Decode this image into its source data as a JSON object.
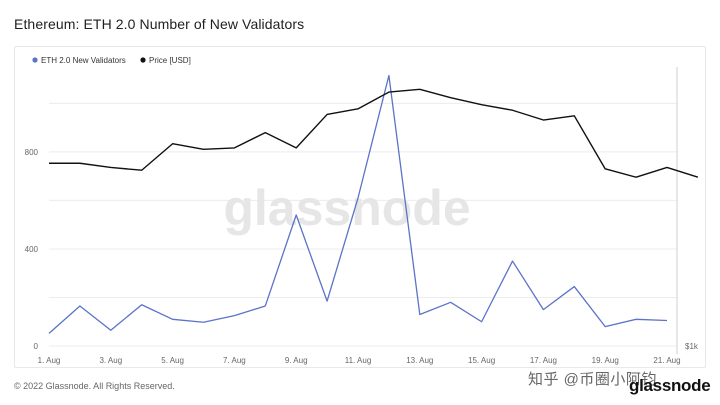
{
  "header": {
    "title": "Ethereum: ETH 2.0 Number of New Validators"
  },
  "footer": {
    "copyright": "© 2022 Glassnode. All Rights Reserved."
  },
  "branding": {
    "watermark": "glassnode",
    "logo": "glassnode",
    "cn_watermark": "知乎 @币圈小阿钧"
  },
  "chart_data": {
    "type": "line",
    "x": [
      "1. Aug",
      "2. Aug",
      "3. Aug",
      "4. Aug",
      "5. Aug",
      "6. Aug",
      "7. Aug",
      "8. Aug",
      "9. Aug",
      "10. Aug",
      "11. Aug",
      "12. Aug",
      "13. Aug",
      "14. Aug",
      "15. Aug",
      "16. Aug",
      "17. Aug",
      "18. Aug",
      "19. Aug",
      "20. Aug",
      "21. Aug",
      "22. Aug"
    ],
    "x_tick_labels": [
      "1. Aug",
      "3. Aug",
      "5. Aug",
      "7. Aug",
      "9. Aug",
      "11. Aug",
      "13. Aug",
      "15. Aug",
      "17. Aug",
      "19. Aug",
      "21. Aug"
    ],
    "y_left": {
      "ticks": [
        "0",
        "400",
        "800"
      ],
      "range": [
        0,
        1150
      ]
    },
    "y_right": {
      "tick": "$1k",
      "range": [
        1000,
        2000
      ]
    },
    "series": [
      {
        "name": "ETH 2.0 New Validators",
        "color": "#5b73c8",
        "axis": "left",
        "values": [
          52,
          165,
          65,
          170,
          110,
          98,
          125,
          165,
          540,
          185,
          610,
          1115,
          130,
          180,
          100,
          350,
          150,
          245,
          80,
          110,
          105,
          null
        ]
      },
      {
        "name": "Price [USD]",
        "color": "#111111",
        "axis": "right",
        "values": [
          1655,
          1655,
          1640,
          1630,
          1725,
          1705,
          1710,
          1765,
          1710,
          1830,
          1850,
          1910,
          1920,
          1890,
          1865,
          1845,
          1810,
          1825,
          1635,
          1605,
          1640,
          1605
        ]
      }
    ],
    "legend_position": "top-left",
    "grid": true
  }
}
